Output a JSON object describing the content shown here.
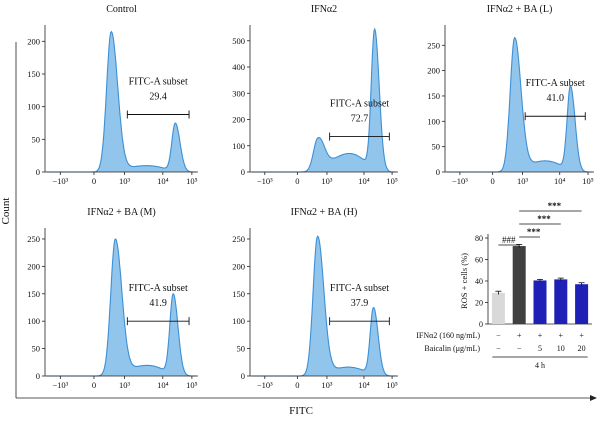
{
  "figure": {
    "y_axis_label": "Count",
    "x_axis_label": "FITC"
  },
  "chart_data": [
    {
      "type": "histogram",
      "title": "Control",
      "y_ticks": [
        0,
        50,
        100,
        150,
        200
      ],
      "ylim": [
        0,
        225
      ],
      "x_ticks": [
        "−10³",
        "0",
        "10³",
        "10⁴",
        "10⁵"
      ],
      "gate": {
        "name": "FITC-A subset",
        "percent": "29.4",
        "range": [
          1200,
          80000
        ],
        "level": 88
      },
      "peaks": [
        {
          "x": 350,
          "height": 215
        },
        {
          "x": 27000,
          "height": 75
        }
      ]
    },
    {
      "type": "histogram",
      "title": "IFNα2",
      "y_ticks": [
        0,
        100,
        200,
        300,
        400,
        500
      ],
      "ylim": [
        0,
        560
      ],
      "x_ticks": [
        "−10³",
        "0",
        "10³",
        "10⁴",
        "10⁵"
      ],
      "gate": {
        "name": "FITC-A subset",
        "percent": "72.7",
        "range": [
          1200,
          80000
        ],
        "level": 135
      },
      "peaks": [
        {
          "x": 500,
          "height": 130
        },
        {
          "x": 24000,
          "height": 545
        }
      ]
    },
    {
      "type": "histogram",
      "title": "IFNα2 + BA (L)",
      "y_ticks": [
        0,
        50,
        100,
        150,
        200,
        250
      ],
      "ylim": [
        0,
        290
      ],
      "x_ticks": [
        "−10³",
        "0",
        "10³",
        "10⁴",
        "10⁵"
      ],
      "gate": {
        "name": "FITC-A subset",
        "percent": "41.0",
        "range": [
          1200,
          80000
        ],
        "level": 110
      },
      "peaks": [
        {
          "x": 550,
          "height": 265
        },
        {
          "x": 24000,
          "height": 170
        }
      ]
    },
    {
      "type": "histogram",
      "title": "IFNα2 + BA (M)",
      "y_ticks": [
        0,
        50,
        100,
        150,
        200,
        250
      ],
      "ylim": [
        0,
        270
      ],
      "x_ticks": [
        "−10³",
        "0",
        "10³",
        "10⁴",
        "10⁵"
      ],
      "gate": {
        "name": "FITC-A subset",
        "percent": "41.9",
        "range": [
          1200,
          80000
        ],
        "level": 100
      },
      "peaks": [
        {
          "x": 500,
          "height": 250
        },
        {
          "x": 23000,
          "height": 150
        }
      ]
    },
    {
      "type": "histogram",
      "title": "IFNα2 + BA (H)",
      "y_ticks": [
        0,
        50,
        100,
        150,
        200,
        250
      ],
      "ylim": [
        0,
        270
      ],
      "x_ticks": [
        "−10³",
        "0",
        "10³",
        "10⁴",
        "10⁵"
      ],
      "gate": {
        "name": "FITC-A subset",
        "percent": "37.9",
        "range": [
          1200,
          80000
        ],
        "level": 100
      },
      "peaks": [
        {
          "x": 480,
          "height": 255
        },
        {
          "x": 22000,
          "height": 125
        }
      ]
    },
    {
      "type": "bar",
      "ylabel": "ROS + cells (%)",
      "y_ticks": [
        0,
        20,
        40,
        60,
        80
      ],
      "ylim": [
        0,
        80
      ],
      "values": [
        29,
        72.5,
        40.5,
        41.5,
        37
      ],
      "errors": [
        1.5,
        1.5,
        1,
        1.2,
        1.4
      ],
      "colors": [
        "#d9d9d9",
        "#404040",
        "#1f20b6",
        "#1f20b6",
        "#1f20b6"
      ],
      "row_labels": [
        "IFNα2 (160 ng/mL)",
        "Baicalin (μg/mL)"
      ],
      "row1": [
        "−",
        "+",
        "+",
        "+",
        "+"
      ],
      "row2": [
        "−",
        "−",
        "5",
        "10",
        "20"
      ],
      "time_label": "4 h",
      "significance": [
        {
          "label": "###",
          "from": 0,
          "to": 1
        },
        {
          "label": "***",
          "from": 1,
          "to": 2
        },
        {
          "label": "***",
          "from": 1,
          "to": 3
        },
        {
          "label": "***",
          "from": 1,
          "to": 4
        }
      ]
    }
  ]
}
